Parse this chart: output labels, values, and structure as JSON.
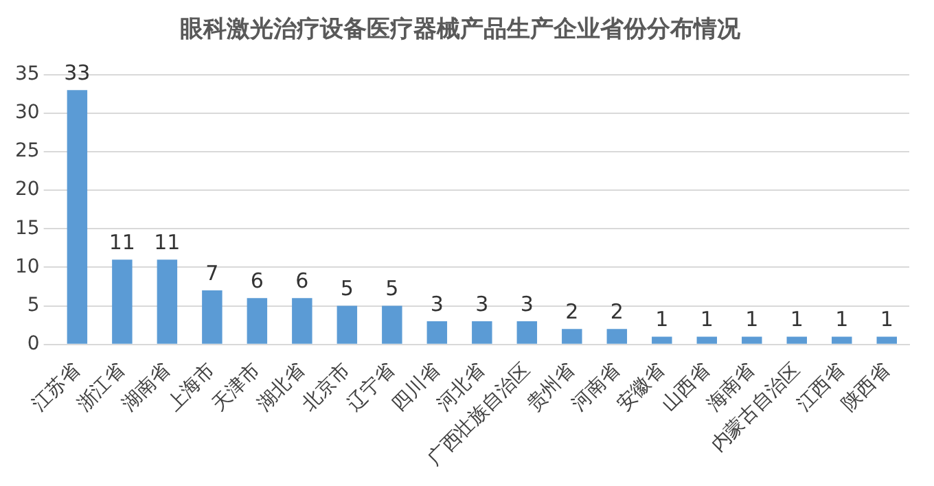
{
  "chart_data": {
    "type": "bar",
    "title": "眼科激光治疗设备医疗器械产品生产企业省份分布情况",
    "categories": [
      "江苏省",
      "浙江省",
      "湖南省",
      "上海市",
      "天津市",
      "湖北省",
      "北京市",
      "辽宁省",
      "四川省",
      "河北省",
      "广西壮族自治区",
      "贵州省",
      "河南省",
      "安徽省",
      "山西省",
      "海南省",
      "内蒙古自治区",
      "江西省",
      "陕西省"
    ],
    "values": [
      33,
      11,
      11,
      7,
      6,
      6,
      5,
      5,
      3,
      3,
      3,
      2,
      2,
      1,
      1,
      1,
      1,
      1,
      1
    ],
    "color": "#5b9bd5",
    "ylim": [
      0,
      35
    ],
    "yticks": [
      0,
      5,
      10,
      15,
      20,
      25,
      30,
      35
    ],
    "grid": "y",
    "data_labels": true,
    "legend": false
  }
}
